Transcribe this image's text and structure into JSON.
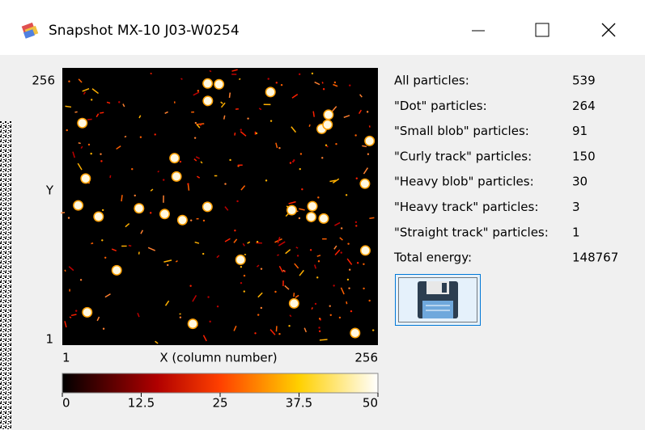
{
  "window": {
    "title": "Snapshot MX-10 J03-W0254"
  },
  "image": {
    "y_max_label": 256,
    "y_axis_label": "Y",
    "y_min_label": 1,
    "x_min_label": 1,
    "x_axis_label": "X (column number)",
    "x_max_label": 256
  },
  "colorbar": {
    "ticks": [
      0,
      12.5,
      25,
      37.5,
      50
    ]
  },
  "stats": [
    {
      "label": "All particles:",
      "value": 539
    },
    {
      "label": "\"Dot\" particles:",
      "value": 264
    },
    {
      "label": "\"Small blob\" particles:",
      "value": 91
    },
    {
      "label": "\"Curly track\" particles:",
      "value": 150
    },
    {
      "label": "\"Heavy blob\" particles:",
      "value": 30
    },
    {
      "label": "\"Heavy track\" particles:",
      "value": 3
    },
    {
      "label": "\"Straight track\" particles:",
      "value": 1
    },
    {
      "label": "Total energy:",
      "value": 148767
    }
  ]
}
